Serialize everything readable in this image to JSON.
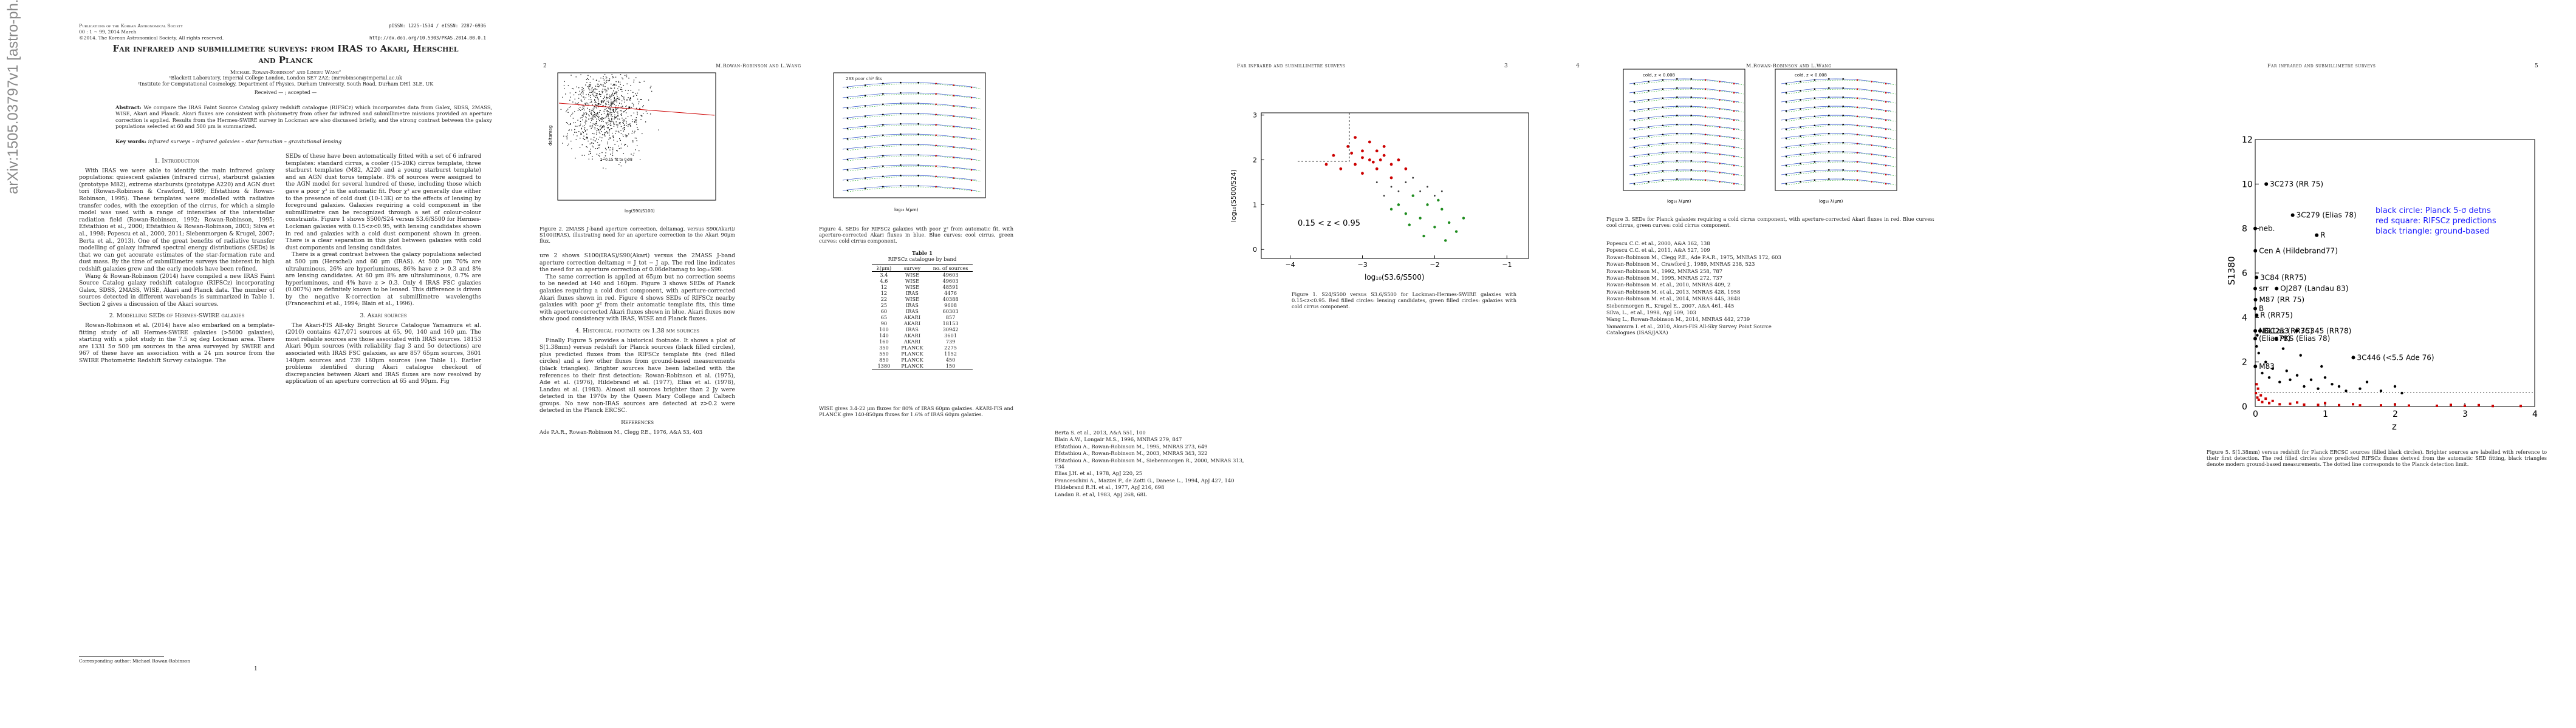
{
  "arxiv_stamp": "arXiv:1505.03797v1  [astro-ph.GA]  14 May 2015",
  "page1": {
    "journal": "Publications of the Korean Astronomical Society",
    "volume": "00 : 1 ∼ 99, 2014 March",
    "copyright": "©2014. The Korean Astronomical Society. All rights reserved.",
    "pissn": "pISSN: 1225-1534 / eISSN: 2287-6936",
    "doi": "http://dx.doi.org/10.5303/PKAS.2014.00.0.1",
    "title": "Far infrared and submillimetre surveys: from IRAS to Akari, Herschel and Planck",
    "authors": "Michael Rowan-Robinson¹ and Lingyu Wang²",
    "affil1": "¹Blackett Laboratory, Imperial College London, London SE7 2AZ; (mrrobinson@imperial.ac.uk",
    "affil2": "²Institute for Computational Cosmology, Department of Physics, Durham University, South Road, Durham DH1 3LE, UK",
    "received": "Received — ; accepted —",
    "abstract_label": "Abstract:",
    "abstract": "We compare the IRAS Faint Source Catalog galaxy redshift catalogue (RIFSCz) which incorporates data from Galex, SDSS, 2MASS, WISE, Akari and Planck. Akari fluxes are consistent with photometry from other far infrared and submillimetre missions provided an aperture correction is applied. Results from the Hermes-SWIRE survey in Lockman are also discussed briefly, and the strong contrast between the galaxy populations selected at 60 and 500 μm is summarized.",
    "keywords_label": "Key words:",
    "keywords": "infrared surveys – infrared galaxies – star formation – gravitational lensing",
    "sec1_title": "1. Introduction",
    "sec1_text": "With IRAS we were able to identify the main infrared galaxy populations: quiescent galaxies (infrared cirrus), starburst galaxies (prototype M82), extreme starbursts (prototype A220) and AGN dust tori (Rowan-Robinson & Crawford, 1989; Efstathiou & Rowan-Robinson, 1995). These templates were modelled with radiative transfer codes, with the exception of the cirrus, for which a simple model was used with a range of intensities of the interstellar radiation field (Rowan-Robinson, 1992; Rowan-Robinson, 1995; Efstathiou et al., 2000; Efstathiou & Rowan-Robinson, 2003; Silva et al., 1998; Popescu et al., 2000, 2011; Siebenmorgen & Krugel, 2007; Berta et al., 2013). One of the great benefits of radiative transfer modelling of galaxy infrared spectral energy distributions (SEDs) is that we can get accurate estimates of the star-formation rate and dust mass. By the time of submillimetre surveys the interest in high redshift galaxies grew and the early models have been refined.",
    "sec1_text2": "Wang & Rowan-Robinson (2014) have compiled a new IRAS Faint Source Catalog galaxy redshift catalogue (RIFSCz) incorporating Galex, SDSS, 2MASS, WISE, Akari and Planck data. The number of sources detected in different wavebands is summarized in Table 1. Section 2 gives a discussion of the Akari sources.",
    "sec2_title": "2. Modelling SEDs of Hermes-SWIRE galaxies",
    "sec2_text": "Rowan-Robinson et al. (2014) have also embarked on a template-fitting study of all Hermes-SWIRE galaxies (>5000 galaxies), starting with a pilot study in the 7.5 sq deg Lockman area. There are 1331 5σ 500 μm sources in the area surveyed by SWIRE and 967 of these have an association with a 24 μm source from the SWIRE Photometric Redshift Survey catalogue. The",
    "col2_text": "SEDs of these have been automatically fitted with a set of 6 infrared templates: standard cirrus, a cooler (15-20K) cirrus template, three starburst templates (M82, A220 and a young starburst template) and an AGN dust torus template. 8% of sources were assigned to the AGN model for several hundred of these, including those which gave a poor χ² in the automatic fit. Poor χ² are generally due either to the presence of cold dust (10-13K) or to the effects of lensing by foreground galaxies. Galaxies requiring a cold component in the submillimetre can be recognized through a set of colour-colour constraints. Figure 1 shows S500/S24 versus S3.6/S500 for Hermes-Lockman galaxies with 0.15<z<0.95, with lensing candidates shown in red and galaxies with a cold dust component shown in green. There is a clear separation in this plot between galaxies with cold dust components and lensing candidates.",
    "col2_text2": "There is a great contrast between the galaxy populations selected at 500 μm (Herschel) and 60 μm (IRAS). At 500 μm 70% are ultraluminous, 26% are hyperluminous, 86% have z > 0.3 and 8% are lensing candidates. At 60 μm 8% are ultraluminous, 0.7% are hyperluminous, and 4% have z > 0.3. Only 4 IRAS FSC galaxies (0.007%) are definitely known to be lensed. This difference is driven by the negative K-correction at submillimetre wavelengths (Franceschini et al., 1994; Blain et al., 1996).",
    "sec3_title": "3. Akari sources",
    "sec3_text": "The Akari-FIS All-sky Bright Source Catalogue Yamamura et al. (2010) contains 427,071 sources at 65, 90, 140 and 160 μm. The most reliable sources are those associated with IRAS sources. 18153 Akari 90μm sources (with reliability flag 3 and 5σ detections) are associated with IRAS FSC galaxies, as are 857 65μm sources, 3601 140μm sources and 739 160μm sources (see Table 1). Earlier problems identified during Akari catalogue checkout of discrepancies between Akari and IRAS fluxes are now resolved by application of an aperture correction at 65 and 90μm. Fig",
    "corr": "Corresponding author: Michael Rowan-Robinson",
    "footnum": "1"
  },
  "page2": {
    "pagenum": "2",
    "runhead": "M.Rowan-Robinson and L.Wang",
    "fig2_caption": "Figure 2. 2MASS J-band aperture correction, deltamag, versus S90(Akari)/ S100(IRAS), illustrating need for an aperture correction to the Akari 90μm flux.",
    "fig2_label": "z=0.15 fit to 0.08",
    "fig2_xlabel": "log(S90/S100)",
    "fig2_ylabel": "deltamag",
    "fig4_caption": "Figure 4. SEDs for RIFSCz galaxies with poor χ² from automatic fit, with aperture-corrected Akari fluxes in blue. Blue curves: cool cirrus, green curves: cold cirrus component.",
    "fig4_xlabel": "log₁₀ λ(μm)",
    "fig4_title": "233 poor chi² fits",
    "text1": "ure 2 shows S100(IRAS)/S90(Akari) versus the 2MASS J-band aperture correction deltamag = J_tot − J_ap. The red line indicates the need for an aperture correction of 0.06deltamag to log₁₀S90.",
    "text2": "The same correction is applied at 65μm but no correction seems to be needed at 140 and 160μm. Figure 3 shows SEDs of Planck galaxies requiring a cold dust component, with aperture-corrected Akari fluxes shown in red. Figure 4 shows SEDs of RIFSCz nearby galaxies with poor χ² from their automatic template fits, this time with aperture-corrected Akari fluxes shown in blue. Akari fluxes now show good consistency with IRAS, WISE and Planck fluxes.",
    "sec4_title": "4. Historical footnote on 1.38 mm sources",
    "sec4_text": "Finally Figure 5 provides a historical footnote. It shows a plot of S(1.38mm) versus redshift for Planck sources (black filled circles), plus predicted fluxes from the RIFSCz template fits (red filled circles) and a few other fluxes from ground-based measurements (black triangles). Brighter sources have been labelled with the references to their first detection: Rowan-Robinson et al. (1975), Ade et al. (1976), Hildebrand et al. (1977), Elias et al. (1978), Landau et al. (1983). Almost all sources brighter than 2 Jy were detected in the 1970s by the Queen Mary College and Caltech groups. No new non-IRAS sources are detected at z>0.2 were detected in the Planck ERCSC.",
    "refs_title": "References",
    "refs": "Ade P.A.R., Rowan-Robinson M., Clegg P.E., 1976, A&A 53, 403",
    "table_title": "Table 1",
    "table_subtitle": "RIFSCz catalogue by band",
    "table_headers": [
      "λ(μm)",
      "survey",
      "no. of sources"
    ],
    "table_rows": [
      [
        "3.4",
        "WISE",
        "49603"
      ],
      [
        "4.6",
        "WISE",
        "49603"
      ],
      [
        "12",
        "WISE",
        "48591"
      ],
      [
        "12",
        "IRAS",
        "4476"
      ],
      [
        "22",
        "WISE",
        "40388"
      ],
      [
        "25",
        "IRAS",
        "9608"
      ],
      [
        "60",
        "IRAS",
        "60303"
      ],
      [
        "65",
        "AKARI",
        "857"
      ],
      [
        "90",
        "AKARI",
        "18153"
      ],
      [
        "100",
        "IRAS",
        "30942"
      ],
      [
        "140",
        "AKARI",
        "3601"
      ],
      [
        "160",
        "AKARI",
        "739"
      ],
      [
        "350",
        "PLANCK",
        "2275"
      ],
      [
        "550",
        "PLANCK",
        "1152"
      ],
      [
        "850",
        "PLANCK",
        "450"
      ],
      [
        "1380",
        "PLANCK",
        "150"
      ]
    ],
    "table_note": "WISE gives 3.4-22 μm fluxes for 80% of IRAS 60μm galaxies. AKARI-FIS and PLANCK give 140-850μm fluxes for 1.6% of IRAS 60μm galaxies."
  },
  "page3": {
    "pagenum": "3",
    "runhead": "Far infrared and submillimetre surveys",
    "fig1_annotation": "0.15 < z < 0.95",
    "fig1_xlabel": "log₁₀(S3.6/S500)",
    "fig1_ylabel": "log₁₀(S500/S24)",
    "fig1_caption": "Figure 1. S24/S500 versus S3.6/S500 for Lockman-Hermes-SWIRE galaxies with 0.15<z<0.95. Red filled circles: lensing candidates, green filled circles: galaxies with cold cirrus component.",
    "refs": [
      "Berta S. et al., 2013, A&A 551, 100",
      "Blain A.W., Longair M.S., 1996, MNRAS 279, 847",
      "Efstathiou A., Rowan-Robinson M., 1995, MNRAS 273, 649",
      "Efstathiou A., Rowan-Robinson M., 2003, MNRAS 343, 322",
      "Efstathiou A., Rowan-Robinson M., Siebenmorgen R., 2000, MNRAS 313, 734",
      "Elias J.H. et al., 1978, ApJ 220, 25",
      "Franceschini A., Mazzei P., de Zotti G., Danese L., 1994, ApJ 427, 140",
      "Hildebrand R.H. et al., 1977, ApJ 216, 698",
      "Landau R. et al, 1983, ApJ 268, 68L"
    ]
  },
  "page4": {
    "pagenum": "4",
    "runhead": "M.Rowan-Robinson and L.Wang",
    "fig3_caption": "Figure 3. SEDs for Planck galaxies requiring a cold cirrus component, with aperture-corrected Akari fluxes in red. Blue curves: cool cirrus, green curves: cold cirrus component.",
    "fig3_title": "cold, z < 0.008",
    "fig3_xlabel": "log₁₀ λ(μm)",
    "refs": [
      "Popescu C.C. et al., 2000, A&A 362, 138",
      "Popescu C.C. et al., 2011, A&A 527, 109",
      "Rowan-Robinson M., Clegg P.E., Ade P.A.R., 1975, MNRAS 172, 603",
      "Rowan-Robinson M., Crawford J., 1989, MNRAS 238, 523",
      "Rowan-Robinson M., 1992, MNRAS 258, 787",
      "Rowan-Robinson M., 1995, MNRAS 272, 737",
      "Rowan-Robinson M. et al., 2010, MNRAS 409, 2",
      "Rowan-Robinson M. et al., 2013, MNRAS 428, 1958",
      "Rowan-Robinson M. et al., 2014, MNRAS 445, 3848",
      "Siebenmorgen R., Krugel E., 2007, A&A 461, 445",
      "Silva, L., et al., 1998, ApJ 509, 103",
      "Wang L., Rowan-Robinson M., 2014, MNRAS 442, 2739",
      "Yamamura I. et al., 2010, Akari-FIS All-Sky Survey Point Source Catalogues (ISAS/JAXA)"
    ]
  },
  "page5": {
    "pagenum": "5",
    "runhead": "Far infrared and submillimetre surveys",
    "fig5_caption": "Figure 5. S(1.38mm) versus redshift for Planck ERCSC sources (filled black circles). Brighter sources are labelled with reference to their first detection. The red filled circles show predicted RIFSCz fluxes derived from the automatic SED fitting, black triangles denote modern ground-based measurements. The dotted line corresponds to the Planck detection limit."
  },
  "chart_data": [
    {
      "type": "scatter",
      "id": "fig5",
      "xlabel": "z",
      "ylabel": "S1380",
      "xlim": [
        0,
        4
      ],
      "ylim": [
        0,
        12
      ],
      "xticks": [
        0,
        1,
        2,
        3,
        4
      ],
      "yticks": [
        0,
        2,
        4,
        6,
        8,
        10,
        12
      ],
      "legend": [
        "black circle: Planck 5-σ detns",
        "red square: RIFSCz predictions",
        "black triangle: ground-based"
      ],
      "legend_colors": [
        "#000000",
        "#cc0000",
        "#000000"
      ],
      "labelled_points": [
        {
          "label": "3C273 (RR 75)",
          "x": 0.158,
          "y": 10.0
        },
        {
          "label": "3C279 (Elias 78)",
          "x": 0.536,
          "y": 8.6
        },
        {
          "label": "neb.",
          "x": 0.0,
          "y": 8.0
        },
        {
          "label": "Cen A (Hildebrand77)",
          "x": 0.002,
          "y": 7.0
        },
        {
          "label": "R",
          "x": 0.88,
          "y": 7.7
        },
        {
          "label": "3C84 (RR75)",
          "x": 0.018,
          "y": 5.8
        },
        {
          "label": "OJ287 (Landau 83)",
          "x": 0.306,
          "y": 5.3
        },
        {
          "label": "srr",
          "x": 0.0,
          "y": 5.3
        },
        {
          "label": "M87 (RR 75)",
          "x": 0.004,
          "y": 4.8
        },
        {
          "label": "B",
          "x": 0.0,
          "y": 4.4
        },
        {
          "label": "R (RR75)",
          "x": 0.02,
          "y": 4.1
        },
        {
          "label": "NGC253",
          "x": 0.001,
          "y": 3.4
        },
        {
          "label": "BLLac (RR75)",
          "x": 0.069,
          "y": 3.4
        },
        {
          "label": "3C345 (RR78)",
          "x": 0.594,
          "y": 3.4
        },
        {
          "label": "(Elias78)",
          "x": 0.0,
          "y": 3.05
        },
        {
          "label": "PKS (Elias 78)",
          "x": 0.3,
          "y": 3.05
        },
        {
          "label": "3C446 (<5.5 Ade 76)",
          "x": 1.404,
          "y": 2.2
        },
        {
          "label": "M83",
          "x": 0.002,
          "y": 1.8
        }
      ],
      "planck_points": [
        [
          0.1,
          1.5
        ],
        [
          0.2,
          1.3
        ],
        [
          0.35,
          1.1
        ],
        [
          0.5,
          1.2
        ],
        [
          0.7,
          0.9
        ],
        [
          0.9,
          0.8
        ],
        [
          1.1,
          1.0
        ],
        [
          1.3,
          0.7
        ],
        [
          0.05,
          2.4
        ],
        [
          0.15,
          2.0
        ],
        [
          0.25,
          1.7
        ],
        [
          0.45,
          1.6
        ],
        [
          0.6,
          1.4
        ],
        [
          0.8,
          1.2
        ],
        [
          1.0,
          1.3
        ],
        [
          1.2,
          0.9
        ],
        [
          1.5,
          0.8
        ],
        [
          1.8,
          0.7
        ],
        [
          2.1,
          0.6
        ],
        [
          0.02,
          2.7
        ],
        [
          0.03,
          3.2
        ],
        [
          0.4,
          2.6
        ],
        [
          0.65,
          2.3
        ],
        [
          0.95,
          1.8
        ],
        [
          1.6,
          1.1
        ],
        [
          2.0,
          0.9
        ]
      ],
      "rifscz_points": [
        [
          0.01,
          0.6
        ],
        [
          0.03,
          0.4
        ],
        [
          0.05,
          0.3
        ],
        [
          0.1,
          0.2
        ],
        [
          0.2,
          0.15
        ],
        [
          0.35,
          0.1
        ],
        [
          0.5,
          0.12
        ],
        [
          0.7,
          0.08
        ],
        [
          0.9,
          0.07
        ],
        [
          1.2,
          0.06
        ],
        [
          1.5,
          0.05
        ],
        [
          1.8,
          0.05
        ],
        [
          2.2,
          0.04
        ],
        [
          2.6,
          0.03
        ],
        [
          3.0,
          0.03
        ],
        [
          3.4,
          0.02
        ],
        [
          3.8,
          0.02
        ],
        [
          0.02,
          1.0
        ],
        [
          0.04,
          0.8
        ],
        [
          0.08,
          0.5
        ],
        [
          0.15,
          0.35
        ],
        [
          0.25,
          0.25
        ],
        [
          0.6,
          0.18
        ],
        [
          1.0,
          0.15
        ],
        [
          1.4,
          0.1
        ],
        [
          2.0,
          0.09
        ],
        [
          2.8,
          0.07
        ],
        [
          3.2,
          0.06
        ]
      ]
    },
    {
      "type": "scatter",
      "id": "fig1",
      "xlabel": "log₁₀(S3.6/S500)",
      "ylabel": "log₁₀(S500/S24)",
      "xlim": [
        -4.4,
        -0.7
      ],
      "ylim": [
        -0.2,
        3.05
      ],
      "xticks": [
        -4,
        -3,
        -2,
        -1
      ],
      "yticks": [
        0,
        1,
        2,
        3
      ],
      "red_points": [
        [
          -3.0,
          2.2
        ],
        [
          -2.9,
          2.0
        ],
        [
          -2.7,
          2.1
        ],
        [
          -3.1,
          1.9
        ],
        [
          -2.8,
          1.8
        ],
        [
          -3.2,
          2.3
        ],
        [
          -2.6,
          1.9
        ],
        [
          -3.3,
          1.8
        ],
        [
          -2.9,
          2.4
        ],
        [
          -3.0,
          1.7
        ],
        [
          -2.5,
          2.0
        ],
        [
          -3.4,
          2.1
        ],
        [
          -2.7,
          2.3
        ],
        [
          -3.1,
          2.5
        ],
        [
          -2.8,
          2.2
        ],
        [
          -2.6,
          1.6
        ],
        [
          -3.5,
          1.9
        ],
        [
          -2.4,
          1.8
        ],
        [
          -3.0,
          2.05
        ],
        [
          -2.85,
          1.95
        ],
        [
          -3.15,
          2.15
        ],
        [
          -2.75,
          2.0
        ]
      ],
      "green_points": [
        [
          -2.3,
          1.2
        ],
        [
          -2.1,
          1.0
        ],
        [
          -1.9,
          0.9
        ],
        [
          -2.2,
          0.7
        ],
        [
          -1.8,
          0.6
        ],
        [
          -2.4,
          0.8
        ],
        [
          -2.0,
          0.5
        ],
        [
          -1.7,
          0.4
        ],
        [
          -2.5,
          1.0
        ],
        [
          -2.15,
          0.3
        ],
        [
          -1.95,
          1.1
        ],
        [
          -2.35,
          0.55
        ],
        [
          -1.6,
          0.7
        ],
        [
          -2.6,
          0.9
        ],
        [
          -1.85,
          0.2
        ]
      ],
      "black_points": [
        [
          -2.6,
          1.4
        ],
        [
          -2.4,
          1.5
        ],
        [
          -2.2,
          1.3
        ],
        [
          -2.8,
          1.5
        ],
        [
          -2.0,
          1.2
        ],
        [
          -2.3,
          1.6
        ],
        [
          -2.5,
          1.3
        ],
        [
          -1.9,
          1.3
        ],
        [
          -2.7,
          1.2
        ],
        [
          -2.1,
          1.4
        ]
      ],
      "annotation": "0.15 < z < 0.95"
    }
  ]
}
